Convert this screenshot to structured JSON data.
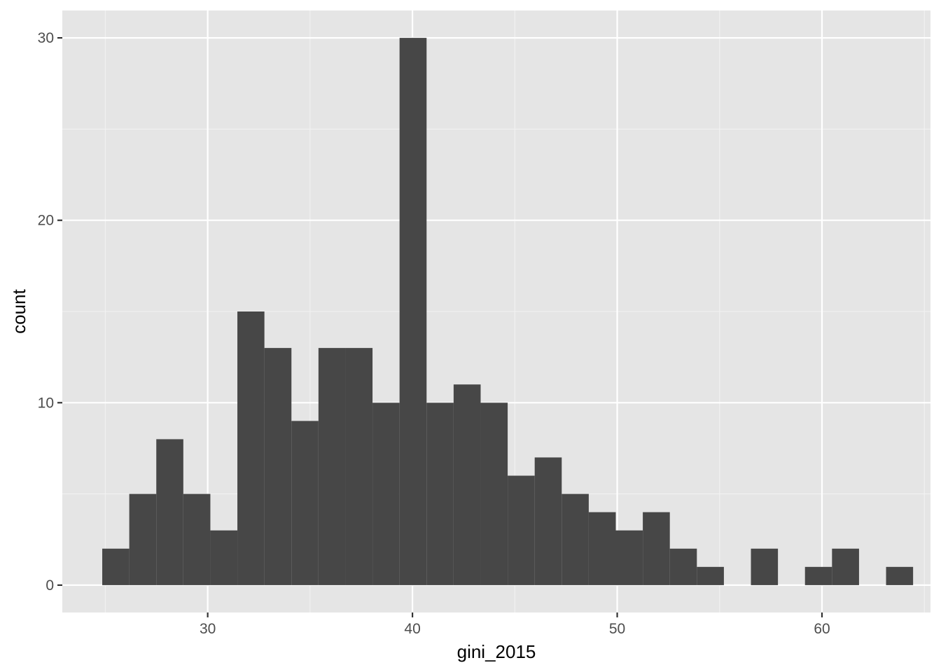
{
  "chart_data": {
    "type": "bar",
    "subtype": "histogram",
    "title": "",
    "xlabel": "gini_2015",
    "ylabel": "count",
    "xlim": [
      22.9,
      65.3
    ],
    "ylim": [
      -1.5,
      31.5
    ],
    "x_ticks": [
      30,
      40,
      50,
      60
    ],
    "y_ticks": [
      0,
      10,
      20,
      30
    ],
    "grid": true,
    "bin_width": 1.32,
    "bins": [
      {
        "x0": 24.85,
        "x1": 26.17,
        "count": 2
      },
      {
        "x0": 26.17,
        "x1": 27.49,
        "count": 5
      },
      {
        "x0": 27.49,
        "x1": 28.81,
        "count": 8
      },
      {
        "x0": 28.81,
        "x1": 30.13,
        "count": 5
      },
      {
        "x0": 30.13,
        "x1": 31.45,
        "count": 3
      },
      {
        "x0": 31.45,
        "x1": 32.77,
        "count": 15
      },
      {
        "x0": 32.77,
        "x1": 34.09,
        "count": 13
      },
      {
        "x0": 34.09,
        "x1": 35.41,
        "count": 9
      },
      {
        "x0": 35.41,
        "x1": 36.73,
        "count": 13
      },
      {
        "x0": 36.73,
        "x1": 38.05,
        "count": 13
      },
      {
        "x0": 38.05,
        "x1": 39.37,
        "count": 10
      },
      {
        "x0": 39.37,
        "x1": 40.69,
        "count": 30
      },
      {
        "x0": 40.69,
        "x1": 42.01,
        "count": 10
      },
      {
        "x0": 42.01,
        "x1": 43.33,
        "count": 11
      },
      {
        "x0": 43.33,
        "x1": 44.65,
        "count": 10
      },
      {
        "x0": 44.65,
        "x1": 45.97,
        "count": 6
      },
      {
        "x0": 45.97,
        "x1": 47.29,
        "count": 7
      },
      {
        "x0": 47.29,
        "x1": 48.61,
        "count": 5
      },
      {
        "x0": 48.61,
        "x1": 49.93,
        "count": 4
      },
      {
        "x0": 49.93,
        "x1": 51.25,
        "count": 3
      },
      {
        "x0": 51.25,
        "x1": 52.57,
        "count": 4
      },
      {
        "x0": 52.57,
        "x1": 53.89,
        "count": 2
      },
      {
        "x0": 53.89,
        "x1": 55.21,
        "count": 1
      },
      {
        "x0": 56.53,
        "x1": 57.85,
        "count": 2
      },
      {
        "x0": 59.17,
        "x1": 60.49,
        "count": 1
      },
      {
        "x0": 60.49,
        "x1": 61.81,
        "count": 2
      },
      {
        "x0": 63.13,
        "x1": 64.45,
        "count": 1
      }
    ],
    "colors": {
      "bar": "#474747",
      "panel": "#e5e5e5",
      "grid_major": "#ffffff",
      "grid_minor": "#f2f2f2"
    }
  }
}
